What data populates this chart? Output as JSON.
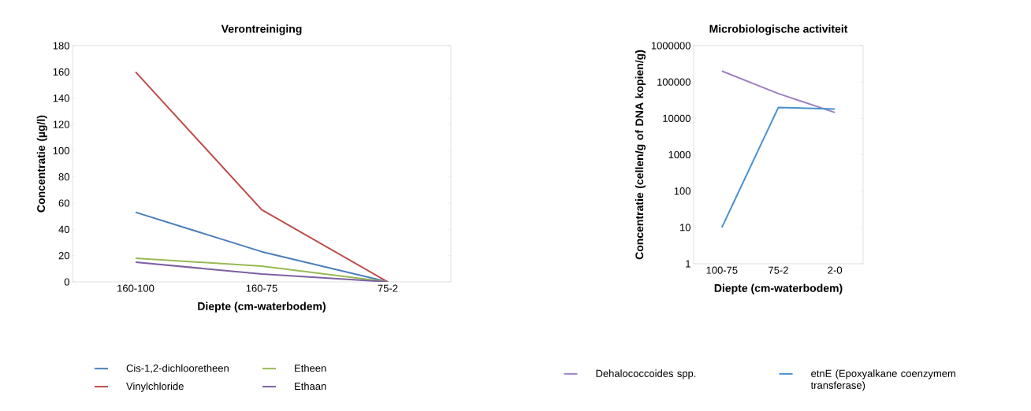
{
  "chart_data": [
    {
      "type": "line",
      "title": "Verontreiniging",
      "xlabel": "Diepte (cm-waterbodem)",
      "ylabel": "Concentratie (µg/l)",
      "categories": [
        "160-100",
        "160-75",
        "75-2"
      ],
      "ylim": [
        0,
        180
      ],
      "yticks": [
        0,
        20,
        40,
        60,
        80,
        100,
        120,
        140,
        160,
        180
      ],
      "legend": "bottom",
      "series": [
        {
          "name": "Cis-1,2-dichlooretheen",
          "color": "#4a7ebb",
          "values": [
            53,
            23,
            0
          ]
        },
        {
          "name": "Vinylchloride",
          "color": "#be4b48",
          "values": [
            160,
            55,
            0
          ]
        },
        {
          "name": "Etheen",
          "color": "#98b954",
          "values": [
            18,
            12,
            0
          ]
        },
        {
          "name": "Ethaan",
          "color": "#7d60a0",
          "values": [
            15,
            6,
            0
          ]
        }
      ]
    },
    {
      "type": "line",
      "title": "Microbiologische activiteit",
      "xlabel": "Diepte (cm-waterbodem)",
      "ylabel": "Concentratie (cellen/g of DNA kopien/g)",
      "categories": [
        "100-75",
        "75-2",
        "2-0"
      ],
      "log": "y",
      "ylim": [
        1,
        1000000
      ],
      "yticks": [
        1,
        10,
        100,
        1000,
        10000,
        100000,
        1000000
      ],
      "legend": "bottom",
      "series": [
        {
          "name": "Dehalococcoides spp.",
          "color": "#9e82c0",
          "values": [
            200000,
            48000,
            14500
          ]
        },
        {
          "name": "etnE (Epoxyalkane coenzymem transferase)",
          "color": "#4a90cf",
          "values": [
            10,
            20000,
            18000
          ]
        }
      ]
    }
  ]
}
